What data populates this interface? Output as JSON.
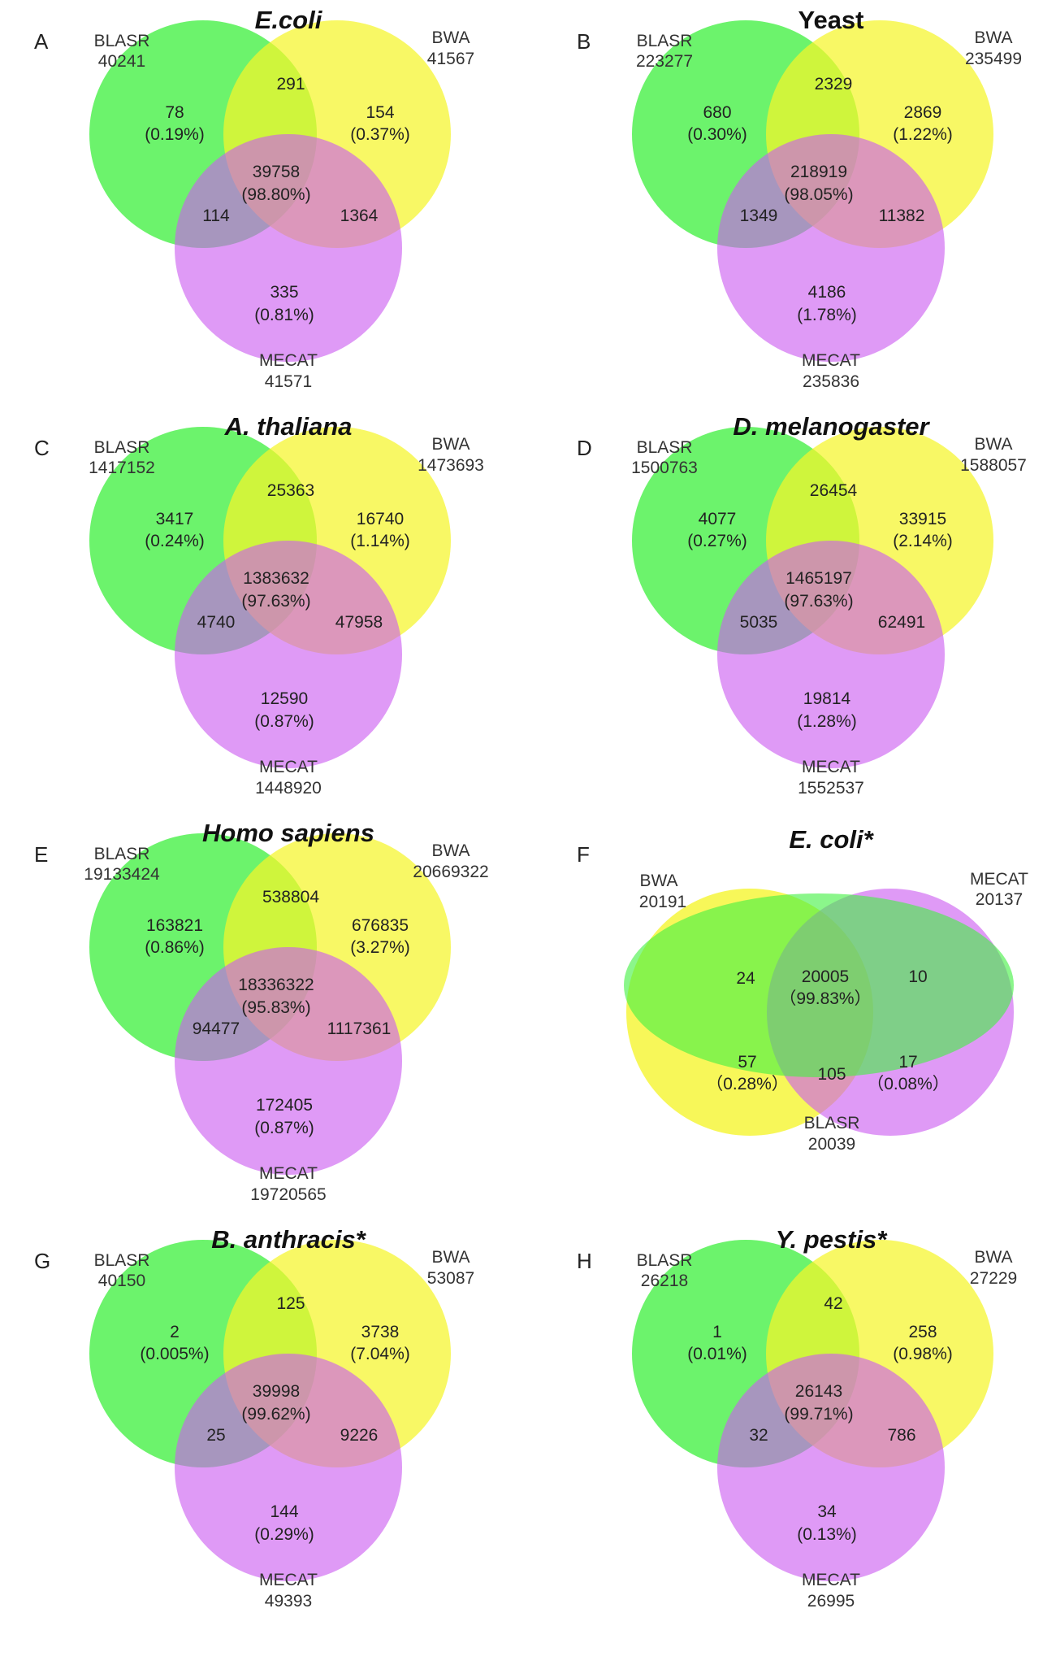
{
  "colors": {
    "green": "#43f043",
    "yellow": "#f5f52a",
    "purple": "#cc5cf0",
    "text": "#222222"
  },
  "chart_data": [
    {
      "type": "venn",
      "panel": "A",
      "title": "E.coli",
      "title_italic": true,
      "sets": [
        {
          "name": "BLASR",
          "total": "40241",
          "color": "green"
        },
        {
          "name": "BWA",
          "total": "41567",
          "color": "yellow"
        },
        {
          "name": "MECAT",
          "total": "41571",
          "color": "purple"
        }
      ],
      "regions": {
        "a_only": "78",
        "a_only_pct": "(0.19%)",
        "b_only": "154",
        "b_only_pct": "(0.37%)",
        "c_only": "335",
        "c_only_pct": "(0.81%)",
        "ab": "291",
        "ac": "114",
        "bc": "1364",
        "abc": "39758",
        "abc_pct": "(98.80%)"
      }
    },
    {
      "type": "venn",
      "panel": "B",
      "title": "Yeast",
      "title_italic": false,
      "sets": [
        {
          "name": "BLASR",
          "total": "223277",
          "color": "green"
        },
        {
          "name": "BWA",
          "total": "235499",
          "color": "yellow"
        },
        {
          "name": "MECAT",
          "total": "235836",
          "color": "purple"
        }
      ],
      "regions": {
        "a_only": "680",
        "a_only_pct": "(0.30%)",
        "b_only": "2869",
        "b_only_pct": "(1.22%)",
        "c_only": "4186",
        "c_only_pct": "(1.78%)",
        "ab": "2329",
        "ac": "1349",
        "bc": "11382",
        "abc": "218919",
        "abc_pct": "(98.05%)"
      }
    },
    {
      "type": "venn",
      "panel": "C",
      "title": "A. thaliana",
      "title_italic": true,
      "sets": [
        {
          "name": "BLASR",
          "total": "1417152",
          "color": "green"
        },
        {
          "name": "BWA",
          "total": "1473693",
          "color": "yellow"
        },
        {
          "name": "MECAT",
          "total": "1448920",
          "color": "purple"
        }
      ],
      "regions": {
        "a_only": "3417",
        "a_only_pct": "(0.24%)",
        "b_only": "16740",
        "b_only_pct": "(1.14%)",
        "c_only": "12590",
        "c_only_pct": "(0.87%)",
        "ab": "25363",
        "ac": "4740",
        "bc": "47958",
        "abc": "1383632",
        "abc_pct": "(97.63%)"
      }
    },
    {
      "type": "venn",
      "panel": "D",
      "title": "D. melanogaster",
      "title_italic": true,
      "sets": [
        {
          "name": "BLASR",
          "total": "1500763",
          "color": "green"
        },
        {
          "name": "BWA",
          "total": "1588057",
          "color": "yellow"
        },
        {
          "name": "MECAT",
          "total": "1552537",
          "color": "purple"
        }
      ],
      "regions": {
        "a_only": "4077",
        "a_only_pct": "(0.27%)",
        "b_only": "33915",
        "b_only_pct": "(2.14%)",
        "c_only": "19814",
        "c_only_pct": "(1.28%)",
        "ab": "26454",
        "ac": "5035",
        "bc": "62491",
        "abc": "1465197",
        "abc_pct": "(97.63%)"
      }
    },
    {
      "type": "venn",
      "panel": "E",
      "title": "Homo sapiens",
      "title_italic": true,
      "sets": [
        {
          "name": "BLASR",
          "total": "19133424",
          "color": "green"
        },
        {
          "name": "BWA",
          "total": "20669322",
          "color": "yellow"
        },
        {
          "name": "MECAT",
          "total": "19720565",
          "color": "purple"
        }
      ],
      "regions": {
        "a_only": "163821",
        "a_only_pct": "(0.86%)",
        "b_only": "676835",
        "b_only_pct": "(3.27%)",
        "c_only": "172405",
        "c_only_pct": "(0.87%)",
        "ab": "538804",
        "ac": "94477",
        "bc": "1117361",
        "abc": "18336322",
        "abc_pct": "(95.83%)"
      }
    },
    {
      "type": "venn-nested",
      "panel": "F",
      "title": "E. coli*",
      "title_italic": true,
      "sets": [
        {
          "name": "BWA",
          "total": "20191",
          "color": "yellow"
        },
        {
          "name": "MECAT",
          "total": "20137",
          "color": "purple"
        },
        {
          "name": "BLASR",
          "total": "20039",
          "color": "green"
        }
      ],
      "regions": {
        "bwa_blasr": "24",
        "all_three": "20005",
        "all_three_pct": "（99.83%）",
        "mecat_blasr": "10",
        "bwa_only": "57",
        "bwa_only_pct": "（0.28%）",
        "bwa_mecat": "105",
        "mecat_only": "17",
        "mecat_only_pct": "（0.08%）"
      }
    },
    {
      "type": "venn",
      "panel": "G",
      "title": "B. anthracis*",
      "title_italic": true,
      "sets": [
        {
          "name": "BLASR",
          "total": "40150",
          "color": "green"
        },
        {
          "name": "BWA",
          "total": "53087",
          "color": "yellow"
        },
        {
          "name": "MECAT",
          "total": "49393",
          "color": "purple"
        }
      ],
      "regions": {
        "a_only": "2",
        "a_only_pct": "(0.005%)",
        "b_only": "3738",
        "b_only_pct": "(7.04%)",
        "c_only": "144",
        "c_only_pct": "(0.29%)",
        "ab": "125",
        "ac": "25",
        "bc": "9226",
        "abc": "39998",
        "abc_pct": "(99.62%)"
      }
    },
    {
      "type": "venn",
      "panel": "H",
      "title": "Y. pestis*",
      "title_italic": true,
      "sets": [
        {
          "name": "BLASR",
          "total": "26218",
          "color": "green"
        },
        {
          "name": "BWA",
          "total": "27229",
          "color": "yellow"
        },
        {
          "name": "MECAT",
          "total": "26995",
          "color": "purple"
        }
      ],
      "regions": {
        "a_only": "1",
        "a_only_pct": "(0.01%)",
        "b_only": "258",
        "b_only_pct": "(0.98%)",
        "c_only": "34",
        "c_only_pct": "(0.13%)",
        "ab": "42",
        "ac": "32",
        "bc": "786",
        "abc": "26143",
        "abc_pct": "(99.71%)"
      }
    }
  ]
}
